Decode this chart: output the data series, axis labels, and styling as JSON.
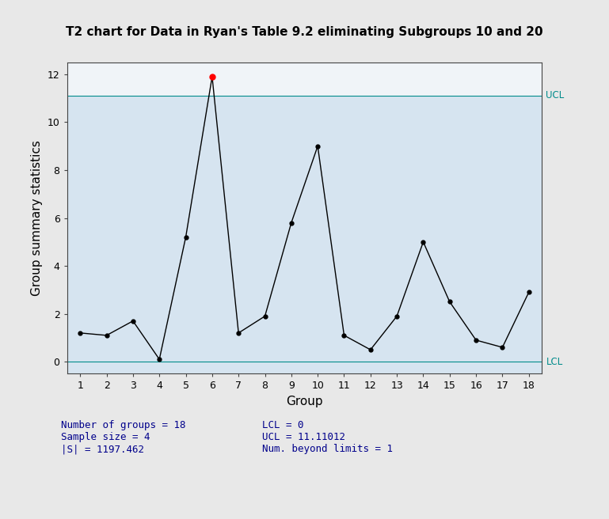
{
  "title": "T2 chart for Data in Ryan's Table 9.2 eliminating Subgroups 10 and 20",
  "xlabel": "Group",
  "ylabel": "Group summary statistics",
  "groups": [
    1,
    2,
    3,
    4,
    5,
    6,
    7,
    8,
    9,
    10,
    11,
    12,
    13,
    14,
    15,
    16,
    17,
    18
  ],
  "values": [
    1.2,
    1.1,
    1.7,
    0.1,
    5.2,
    11.9,
    1.2,
    1.9,
    5.8,
    9.0,
    1.1,
    0.5,
    1.9,
    5.0,
    2.5,
    0.9,
    0.6,
    2.9
  ],
  "UCL": 11.11012,
  "LCL": 0,
  "beyond_ucl_indices": [
    5
  ],
  "normal_color": "#000000",
  "beyond_color": "#FF0000",
  "line_color": "#000000",
  "ucl_lcl_color": "#008B8B",
  "bg_color_main": "#D6E4F0",
  "bg_color_above": "#F0F4F8",
  "bg_color_outer": "#E8E8E8",
  "ylim": [
    -0.5,
    12.5
  ],
  "xlim": [
    0.5,
    18.5
  ],
  "yticks": [
    0,
    2,
    4,
    6,
    8,
    10,
    12
  ],
  "stats_text_left": "Number of groups = 18\nSample size = 4\n|S| = 1197.462",
  "stats_text_right": "LCL = 0\nUCL = 11.11012\nNum. beyond limits = 1",
  "stats_color": "#00008B",
  "title_fontsize": 11,
  "axis_label_fontsize": 11,
  "tick_fontsize": 9,
  "stats_fontsize": 9
}
